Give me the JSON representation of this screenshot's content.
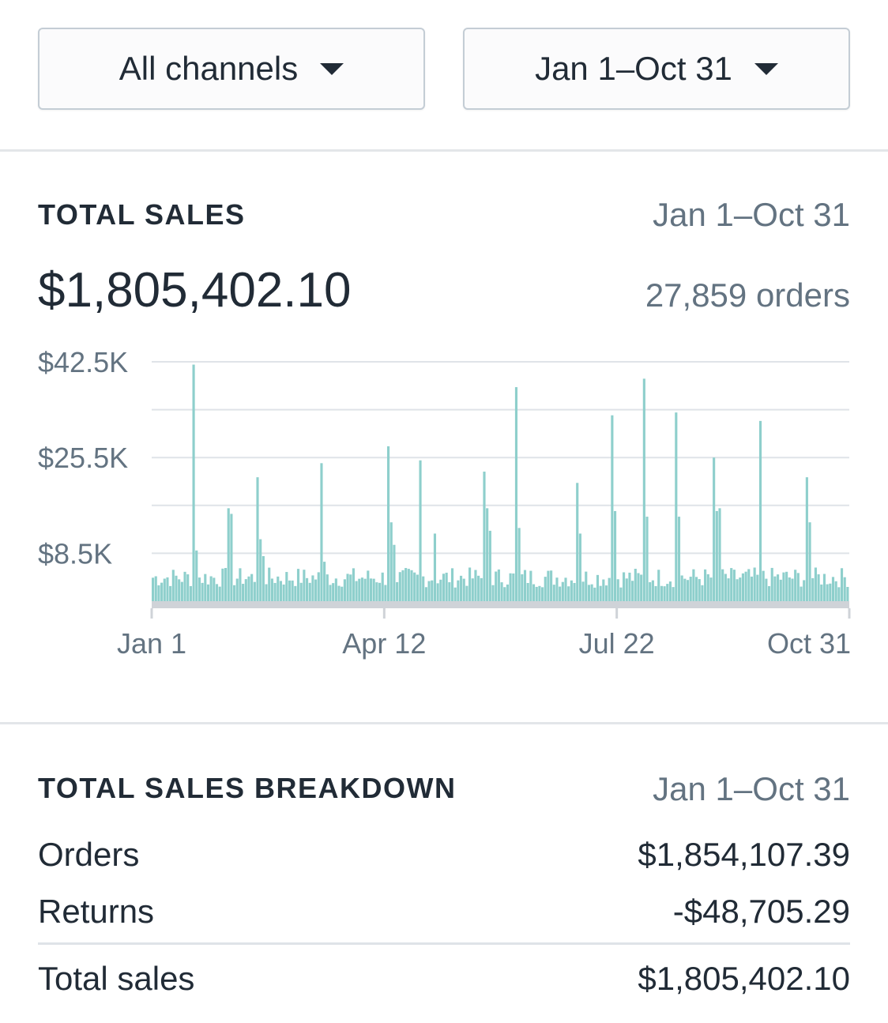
{
  "filters": {
    "channel": "All channels",
    "date_range": "Jan 1–Oct 31"
  },
  "total_sales": {
    "label": "TOTAL SALES",
    "date_range": "Jan 1–Oct 31",
    "amount": "$1,805,402.10",
    "orders": "27,859 orders"
  },
  "breakdown": {
    "label": "TOTAL SALES BREAKDOWN",
    "date_range": "Jan 1–Oct 31",
    "rows": [
      {
        "label": "Orders",
        "value": "$1,854,107.39"
      },
      {
        "label": "Returns",
        "value": "-$48,705.29"
      }
    ],
    "total": {
      "label": "Total sales",
      "value": "$1,805,402.10"
    }
  },
  "colors": {
    "bar": "#8ecfcc",
    "baseline": "#cfd3d8",
    "grid": "#dfe3e8"
  },
  "chart_data": {
    "type": "bar",
    "y_ticks": [
      {
        "value": 42.5,
        "label": "$42.5K"
      },
      {
        "value": 25.5,
        "label": "$25.5K"
      },
      {
        "value": 8.5,
        "label": "$8.5K"
      }
    ],
    "x_ticks": [
      "Jan 1",
      "Apr 12",
      "Jul 22",
      "Oct 31"
    ],
    "ylim": [
      0,
      42.5
    ],
    "value_unit": "thousand USD per day",
    "baseline_value": 4.0,
    "spikes": [
      {
        "day": 14,
        "value": 42.0
      },
      {
        "day": 15,
        "value": 9.0
      },
      {
        "day": 26,
        "value": 16.5
      },
      {
        "day": 27,
        "value": 15.5
      },
      {
        "day": 36,
        "value": 22.0
      },
      {
        "day": 37,
        "value": 11.0
      },
      {
        "day": 38,
        "value": 8.0
      },
      {
        "day": 58,
        "value": 24.5
      },
      {
        "day": 59,
        "value": 7.0
      },
      {
        "day": 81,
        "value": 27.5
      },
      {
        "day": 82,
        "value": 14.0
      },
      {
        "day": 83,
        "value": 10.0
      },
      {
        "day": 92,
        "value": 25.0
      },
      {
        "day": 97,
        "value": 12.0
      },
      {
        "day": 114,
        "value": 23.0
      },
      {
        "day": 115,
        "value": 16.5
      },
      {
        "day": 116,
        "value": 12.5
      },
      {
        "day": 125,
        "value": 38.0
      },
      {
        "day": 126,
        "value": 13.0
      },
      {
        "day": 146,
        "value": 21.0
      },
      {
        "day": 147,
        "value": 12.0
      },
      {
        "day": 158,
        "value": 33.0
      },
      {
        "day": 159,
        "value": 16.0
      },
      {
        "day": 169,
        "value": 39.5
      },
      {
        "day": 170,
        "value": 15.0
      },
      {
        "day": 180,
        "value": 33.5
      },
      {
        "day": 181,
        "value": 15.0
      },
      {
        "day": 193,
        "value": 25.5
      },
      {
        "day": 194,
        "value": 16.0
      },
      {
        "day": 195,
        "value": 16.5
      },
      {
        "day": 209,
        "value": 32.0
      },
      {
        "day": 225,
        "value": 22.0
      },
      {
        "day": 226,
        "value": 14.0
      }
    ]
  }
}
